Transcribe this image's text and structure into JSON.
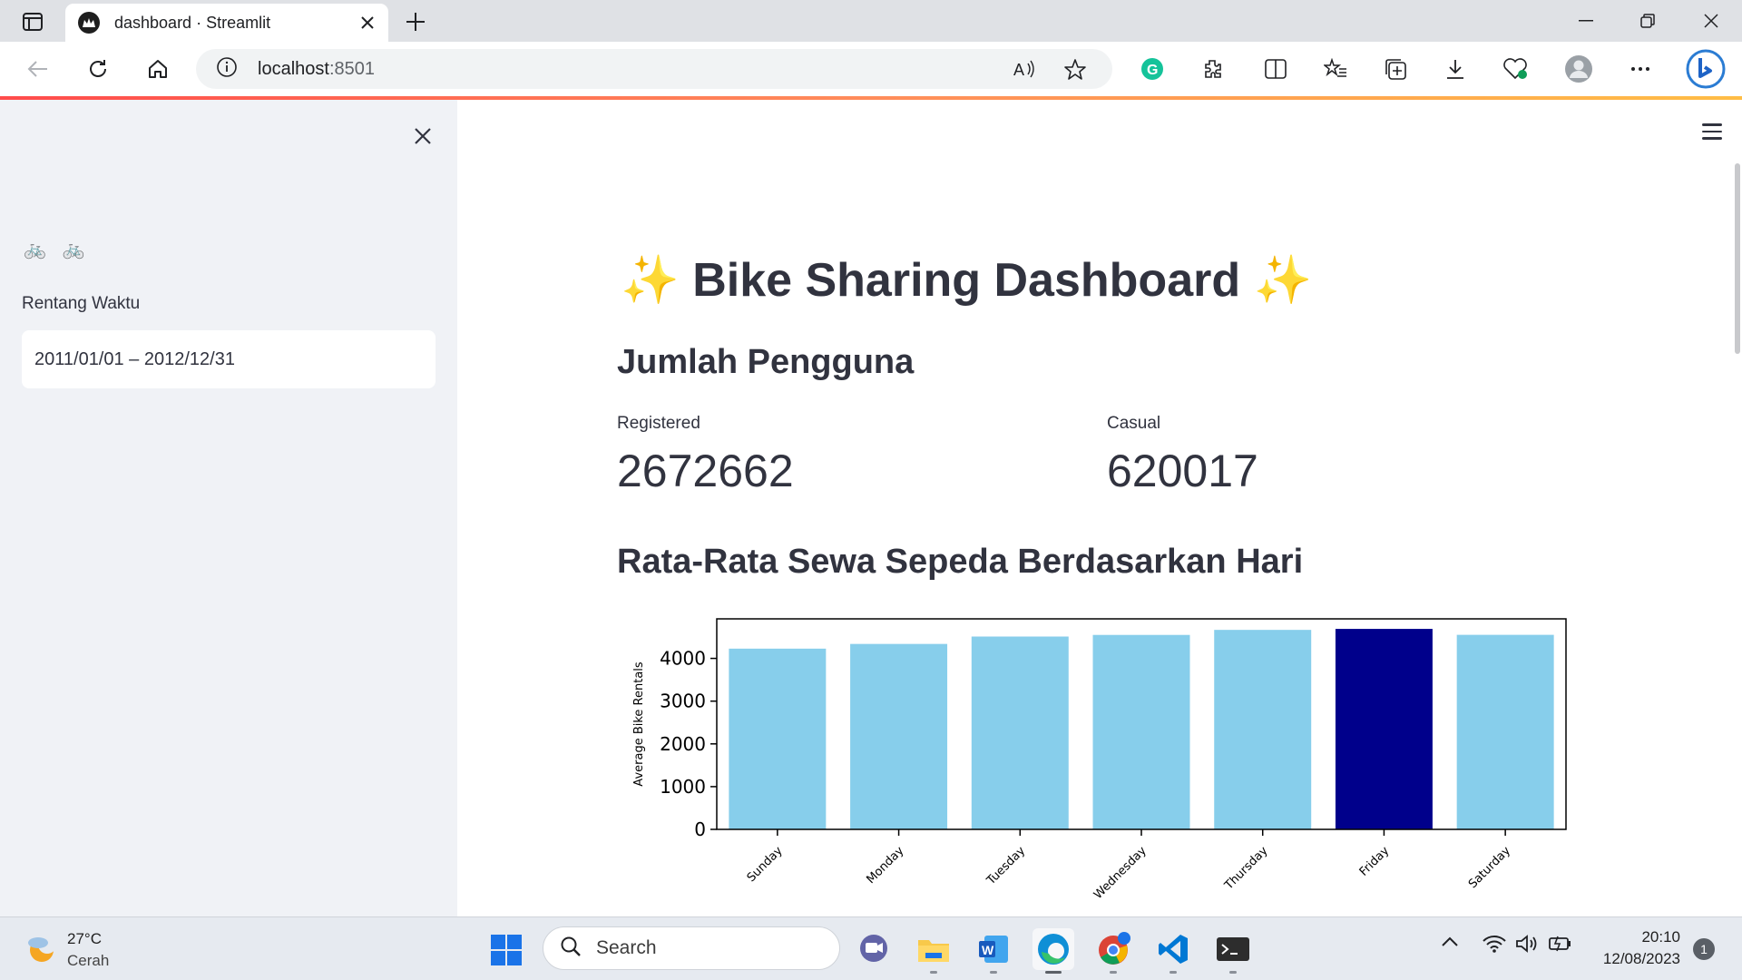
{
  "browser": {
    "tab_title": "dashboard · Streamlit",
    "url_host": "localhost",
    "url_port": ":8501"
  },
  "sidebar": {
    "logo": "🚲 🚲",
    "date_label": "Rentang Waktu",
    "date_range": "2011/01/01 – 2012/12/31"
  },
  "main": {
    "title": "✨ Bike Sharing Dashboard ✨",
    "users_header": "Jumlah Pengguna",
    "metrics": [
      {
        "label": "Registered",
        "value": "2672662"
      },
      {
        "label": "Casual",
        "value": "620017"
      }
    ],
    "chart_header": "Rata-Rata Sewa Sepeda Berdasarkan Hari"
  },
  "chart_data": {
    "type": "bar",
    "categories": [
      "Sunday",
      "Monday",
      "Tuesday",
      "Wednesday",
      "Thursday",
      "Friday",
      "Saturday"
    ],
    "values": [
      4228,
      4338,
      4511,
      4549,
      4667,
      4690,
      4551
    ],
    "highlight_index": 5,
    "highlight_color": "#00008b",
    "bar_color": "#87ceeb",
    "ylabel": "Average Bike Rentals",
    "yticks": [
      0,
      1000,
      2000,
      3000,
      4000
    ],
    "ylim": [
      0,
      4925
    ]
  },
  "taskbar": {
    "weather_temp": "27°C",
    "weather_cond": "Cerah",
    "search_placeholder": "Search",
    "time": "20:10",
    "date": "12/08/2023",
    "notifications": "1"
  },
  "colors": {
    "streamlit_accent": "#ff4b4b",
    "sidebar_bg": "#f0f2f6"
  }
}
